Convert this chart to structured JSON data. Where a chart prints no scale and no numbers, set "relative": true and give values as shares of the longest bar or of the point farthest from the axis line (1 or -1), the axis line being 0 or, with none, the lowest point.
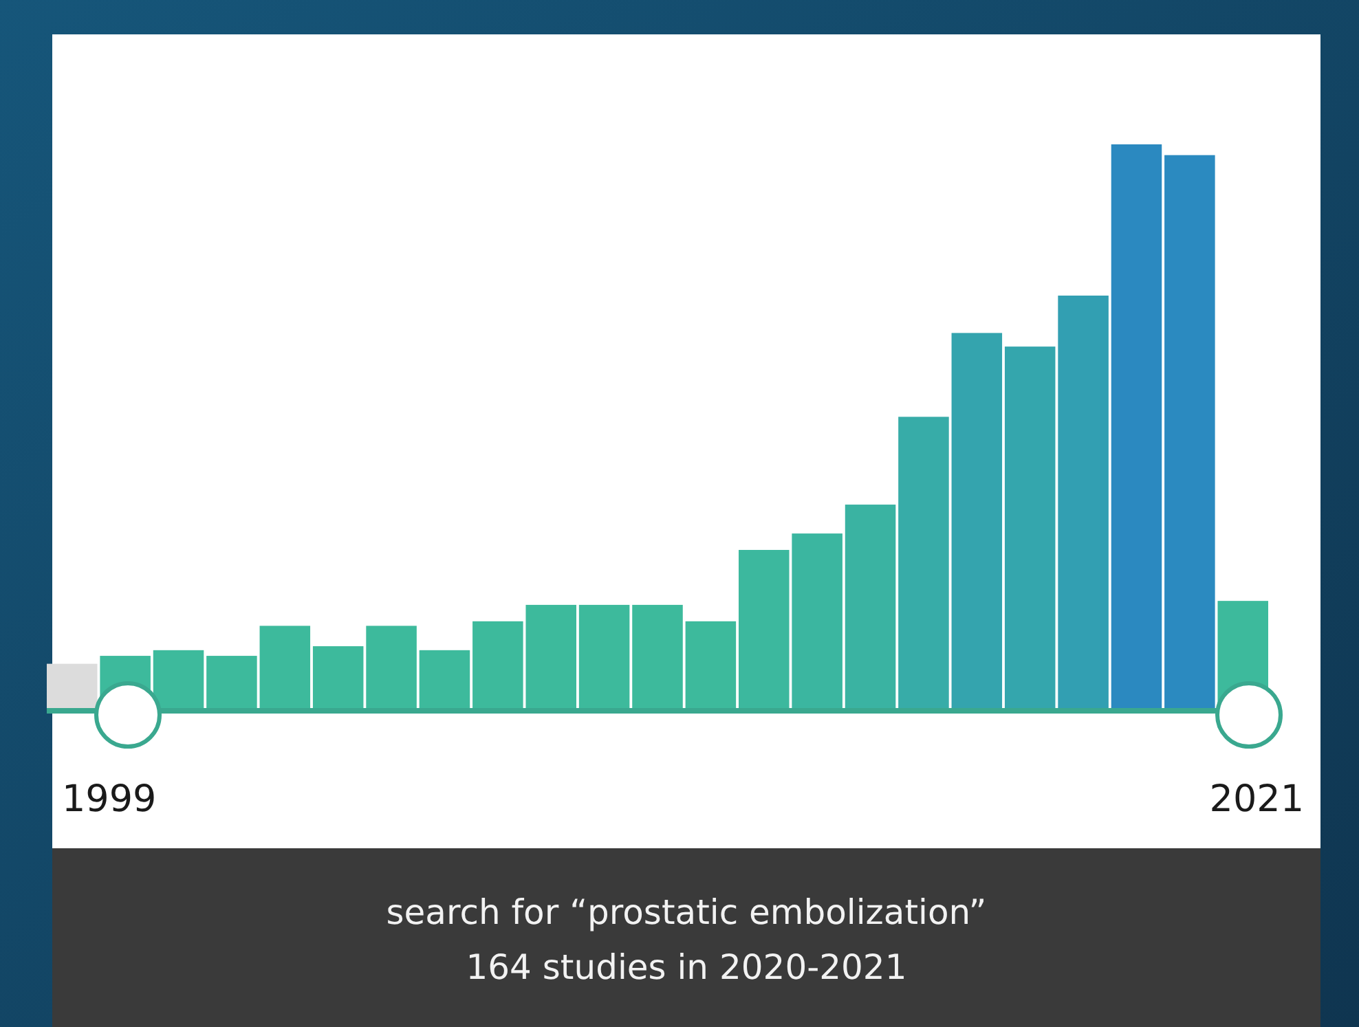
{
  "chart_data": {
    "type": "bar",
    "title": "search for “prostatic embolization”",
    "subtitle": "164 studies in 2020-2021",
    "relative": true,
    "categories": [
      null,
      null,
      null,
      null,
      null,
      null,
      null,
      null,
      null,
      null,
      null,
      null,
      null,
      null,
      null,
      null,
      null,
      null,
      null,
      null,
      null,
      null,
      null
    ],
    "values": [
      0.083,
      0.097,
      0.107,
      0.097,
      0.15,
      0.114,
      0.15,
      0.107,
      0.158,
      0.187,
      0.187,
      0.187,
      0.158,
      0.284,
      0.313,
      0.364,
      0.519,
      0.667,
      0.643,
      0.733,
      1,
      0.981,
      0.194
    ],
    "colors": [
      "#dcdcdc",
      "#3dba9c",
      "#3dba9c",
      "#3dba9c",
      "#3dba9c",
      "#3dba9c",
      "#3dba9c",
      "#3dba9c",
      "#3dba9c",
      "#3dba9c",
      "#3dba9c",
      "#3dba9c",
      "#3dba9c",
      "#3cb89e",
      "#3bb6a0",
      "#3ab3a2",
      "#37aca8",
      "#34a4ae",
      "#34a6ad",
      "#329fb2",
      "#2b89c0",
      "#2b8ac0",
      "#3dba9c"
    ],
    "annotations": [
      "1999",
      "2021"
    ]
  }
}
